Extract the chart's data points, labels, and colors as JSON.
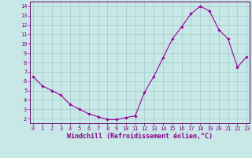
{
  "x": [
    0,
    1,
    2,
    3,
    4,
    5,
    6,
    7,
    8,
    9,
    10,
    11,
    12,
    13,
    14,
    15,
    16,
    17,
    18,
    19,
    20,
    21,
    22,
    23
  ],
  "y": [
    6.5,
    5.5,
    5.0,
    4.5,
    3.5,
    3.0,
    2.5,
    2.2,
    1.9,
    1.9,
    2.1,
    2.3,
    4.8,
    6.5,
    8.5,
    10.5,
    11.8,
    13.2,
    14.0,
    13.5,
    11.5,
    10.5,
    7.5,
    8.6
  ],
  "line_color": "#990099",
  "marker": "D",
  "marker_size": 1.8,
  "bg_color": "#c8e8e8",
  "grid_color": "#a0c8c8",
  "xlabel": "Windchill (Refroidissement éolien,°C)",
  "ylim_min": 1.5,
  "ylim_max": 14.5,
  "xlim_min": -0.3,
  "xlim_max": 23.3,
  "yticks": [
    2,
    3,
    4,
    5,
    6,
    7,
    8,
    9,
    10,
    11,
    12,
    13,
    14
  ],
  "xticks": [
    0,
    1,
    2,
    3,
    4,
    5,
    6,
    7,
    8,
    9,
    10,
    11,
    12,
    13,
    14,
    15,
    16,
    17,
    18,
    19,
    20,
    21,
    22,
    23
  ],
  "tick_color": "#880088",
  "tick_fontsize": 5.0,
  "xlabel_fontsize": 6.0,
  "spine_color": "#660066",
  "linewidth": 0.8
}
